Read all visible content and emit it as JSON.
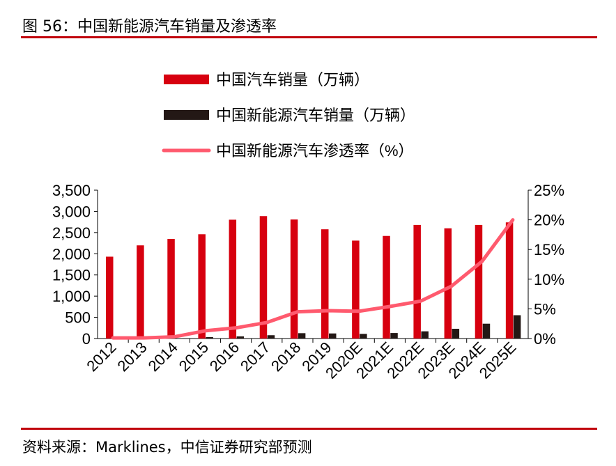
{
  "title": "图 56：中国新能源汽车销量及渗透率",
  "source": "资料来源：Marklines，中信证券研究部预测",
  "colors": {
    "total": "#d7000f",
    "nev": "#231815",
    "rate": "#ff5a6e",
    "rule": "#c0000b"
  },
  "chart_data": {
    "type": "bar",
    "categories": [
      "2012",
      "2013",
      "2014",
      "2015",
      "2016",
      "2017",
      "2018",
      "2019",
      "2020E",
      "2021E",
      "2022E",
      "2023E",
      "2024E",
      "2025E"
    ],
    "series": [
      {
        "name": "中国汽车销量（万辆）",
        "type": "bar",
        "axis": "left",
        "values": [
          1931,
          2198,
          2349,
          2460,
          2803,
          2888,
          2808,
          2577,
          2310,
          2420,
          2680,
          2600,
          2680,
          2740
        ]
      },
      {
        "name": "中国新能源汽车销量（万辆）",
        "type": "bar",
        "axis": "left",
        "values": [
          1,
          2,
          7,
          33,
          51,
          78,
          126,
          120,
          110,
          130,
          170,
          230,
          350,
          550
        ]
      },
      {
        "name": "中国新能源汽车渗透率（%）",
        "type": "line",
        "axis": "right",
        "values": [
          0.1,
          0.1,
          0.3,
          1.3,
          1.8,
          2.7,
          4.5,
          4.7,
          4.6,
          5.4,
          6.3,
          8.8,
          13.0,
          20.0
        ]
      }
    ],
    "ylim": [
      0,
      3500
    ],
    "yticks": [
      "0",
      "500",
      "1,000",
      "1,500",
      "2,000",
      "2,500",
      "3,000",
      "3,500"
    ],
    "y2lim": [
      0,
      25
    ],
    "y2ticks": [
      "0%",
      "5%",
      "10%",
      "15%",
      "20%",
      "25%"
    ],
    "legend": "top-center"
  }
}
